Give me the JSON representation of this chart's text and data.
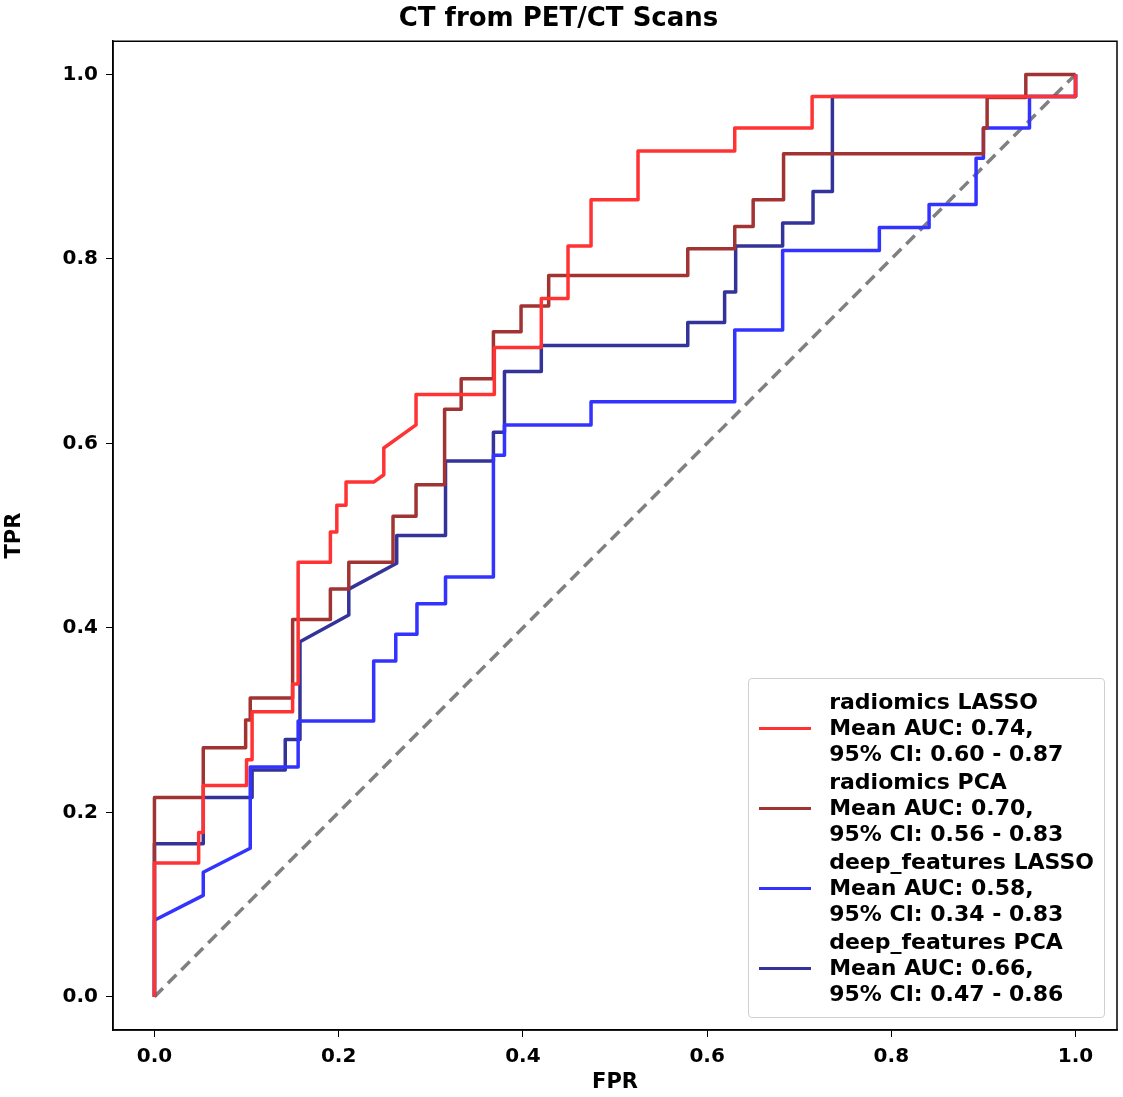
{
  "chart_data": {
    "type": "line",
    "title": "CT from PET/CT Scans",
    "xlabel": "FPR",
    "ylabel": "TPR",
    "xlim": [
      -0.045,
      1.045
    ],
    "ylim": [
      -0.036,
      1.036
    ],
    "xticks": [
      {
        "value": 0,
        "label": "0.0"
      },
      {
        "value": 0.2,
        "label": "0.2"
      },
      {
        "value": 0.4,
        "label": "0.4"
      },
      {
        "value": 0.6,
        "label": "0.6"
      },
      {
        "value": 0.8,
        "label": "0.8"
      },
      {
        "value": 1,
        "label": "1.0"
      }
    ],
    "yticks": [
      {
        "value": 0,
        "label": "0.0"
      },
      {
        "value": 0.2,
        "label": "0.2"
      },
      {
        "value": 0.4,
        "label": "0.4"
      },
      {
        "value": 0.6,
        "label": "0.6"
      },
      {
        "value": 0.8,
        "label": "0.8"
      },
      {
        "value": 1,
        "label": "1.0"
      }
    ],
    "grid": false,
    "legend": "bottom right",
    "marker": "none",
    "line_style": "solid",
    "series": [
      {
        "name": "radiomics LASSO\nMean AUC: 0.74,\n95% CI: 0.60 - 0.87",
        "color": "#ff3333",
        "x": [
          0,
          0,
          0.048,
          0.048,
          0.053,
          0.053,
          0.1,
          0.1,
          0.106,
          0.106,
          0.15,
          0.15,
          0.156,
          0.156,
          0.191,
          0.191,
          0.198,
          0.198,
          0.208,
          0.208,
          0.238,
          0.249,
          0.249,
          0.284,
          0.284,
          0.369,
          0.369,
          0.42,
          0.42,
          0.449,
          0.449,
          0.474,
          0.474,
          0.525,
          0.525,
          0.63,
          0.63,
          0.714,
          0.714,
          1.0,
          1.0
        ],
        "values": [
          0,
          0.145,
          0.145,
          0.178,
          0.178,
          0.229,
          0.229,
          0.257,
          0.257,
          0.309,
          0.309,
          0.339,
          0.339,
          0.471,
          0.471,
          0.504,
          0.504,
          0.533,
          0.533,
          0.558,
          0.558,
          0.566,
          0.595,
          0.62,
          0.653,
          0.653,
          0.704,
          0.704,
          0.757,
          0.757,
          0.814,
          0.814,
          0.864,
          0.864,
          0.917,
          0.917,
          0.942,
          0.942,
          0.976,
          0.976,
          1.0
        ]
      },
      {
        "name": "radiomics PCA\nMean AUC: 0.70,\n95% CI: 0.56 - 0.83",
        "color": "#a23333",
        "x": [
          0,
          0,
          0.053,
          0.053,
          0.099,
          0.099,
          0.104,
          0.104,
          0.15,
          0.15,
          0.191,
          0.191,
          0.211,
          0.211,
          0.259,
          0.259,
          0.284,
          0.284,
          0.315,
          0.315,
          0.333,
          0.333,
          0.368,
          0.368,
          0.398,
          0.398,
          0.428,
          0.428,
          0.579,
          0.579,
          0.63,
          0.63,
          0.65,
          0.65,
          0.683,
          0.683,
          0.9,
          0.9,
          0.904,
          0.904,
          0.946,
          0.946,
          1.0
        ],
        "values": [
          0,
          0.216,
          0.216,
          0.27,
          0.27,
          0.3,
          0.3,
          0.324,
          0.324,
          0.409,
          0.409,
          0.442,
          0.442,
          0.471,
          0.471,
          0.521,
          0.521,
          0.555,
          0.555,
          0.637,
          0.637,
          0.67,
          0.67,
          0.721,
          0.721,
          0.749,
          0.749,
          0.782,
          0.782,
          0.811,
          0.811,
          0.835,
          0.835,
          0.864,
          0.864,
          0.914,
          0.914,
          0.942,
          0.942,
          0.975,
          0.975,
          1.0,
          1.0
        ]
      },
      {
        "name": "deep_features LASSO\nMean AUC: 0.58,\n95% CI: 0.34 - 0.83",
        "color": "#3333ff",
        "x": [
          0,
          0,
          0.053,
          0.053,
          0.104,
          0.104,
          0.156,
          0.156,
          0.238,
          0.238,
          0.262,
          0.262,
          0.285,
          0.285,
          0.316,
          0.316,
          0.368,
          0.368,
          0.38,
          0.38,
          0.474,
          0.474,
          0.63,
          0.63,
          0.682,
          0.682,
          0.787,
          0.787,
          0.841,
          0.841,
          0.892,
          0.892,
          0.9,
          0.9,
          0.95,
          0.95,
          1.0,
          1.0
        ],
        "values": [
          0,
          0.083,
          0.11,
          0.135,
          0.161,
          0.249,
          0.249,
          0.299,
          0.299,
          0.364,
          0.364,
          0.393,
          0.393,
          0.426,
          0.426,
          0.455,
          0.455,
          0.587,
          0.587,
          0.62,
          0.62,
          0.645,
          0.645,
          0.723,
          0.723,
          0.809,
          0.809,
          0.834,
          0.834,
          0.859,
          0.859,
          0.909,
          0.909,
          0.942,
          0.942,
          0.976,
          0.976,
          1.0
        ]
      },
      {
        "name": "deep_features PCA\nMean AUC: 0.66,\n95% CI: 0.47 - 0.86",
        "color": "#333399",
        "x": [
          0,
          0,
          0.053,
          0.053,
          0.106,
          0.106,
          0.142,
          0.142,
          0.158,
          0.158,
          0.211,
          0.211,
          0.263,
          0.263,
          0.316,
          0.316,
          0.368,
          0.368,
          0.38,
          0.38,
          0.42,
          0.42,
          0.579,
          0.579,
          0.619,
          0.619,
          0.631,
          0.631,
          0.682,
          0.682,
          0.715,
          0.715,
          0.736,
          0.736,
          1.0,
          1.0
        ],
        "values": [
          0,
          0.166,
          0.166,
          0.216,
          0.216,
          0.246,
          0.246,
          0.279,
          0.279,
          0.385,
          0.414,
          0.442,
          0.47,
          0.5,
          0.5,
          0.581,
          0.581,
          0.612,
          0.612,
          0.678,
          0.678,
          0.706,
          0.706,
          0.731,
          0.731,
          0.764,
          0.764,
          0.814,
          0.814,
          0.839,
          0.839,
          0.873,
          0.873,
          0.976,
          0.976,
          1.0
        ]
      },
      {
        "color": "#808080",
        "line_style": "dashed",
        "x": [
          0,
          1
        ],
        "values": [
          0,
          1
        ]
      }
    ]
  }
}
